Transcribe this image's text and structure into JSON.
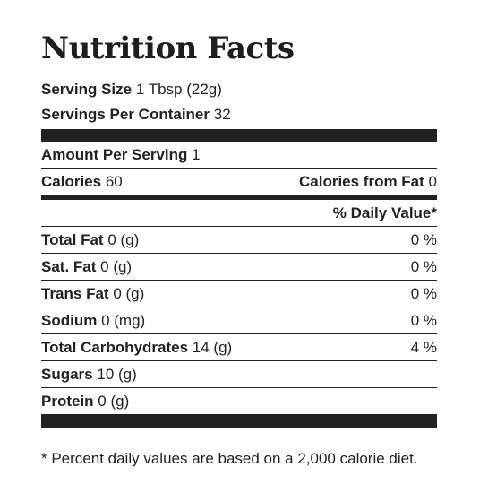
{
  "title": "Nutrition Facts",
  "serving_size": {
    "label": "Serving Size",
    "value": "1 Tbsp (22g)"
  },
  "servings_per_container": {
    "label": "Servings Per Container",
    "value": "32"
  },
  "amount_per_serving": {
    "label": "Amount Per Serving",
    "value": "1"
  },
  "calories": {
    "label": "Calories",
    "value": "60"
  },
  "calories_from_fat": {
    "label": "Calories from Fat",
    "value": "0"
  },
  "daily_value_header": "% Daily Value*",
  "nutrients": [
    {
      "name": "Total Fat",
      "amount": "0 (g)",
      "dv": "0 %"
    },
    {
      "name": "Sat. Fat",
      "amount": "0 (g)",
      "dv": "0 %"
    },
    {
      "name": "Trans Fat",
      "amount": "0 (g)",
      "dv": "0 %"
    },
    {
      "name": "Sodium",
      "amount": "0 (mg)",
      "dv": "0 %"
    },
    {
      "name": "Total Carbohydrates",
      "amount": "14 (g)",
      "dv": "4 %"
    },
    {
      "name": "Sugars",
      "amount": "10 (g)",
      "dv": ""
    },
    {
      "name": "Protein",
      "amount": "0 (g)",
      "dv": ""
    }
  ],
  "footnote": "* Percent daily values are based on a 2,000 calorie diet."
}
